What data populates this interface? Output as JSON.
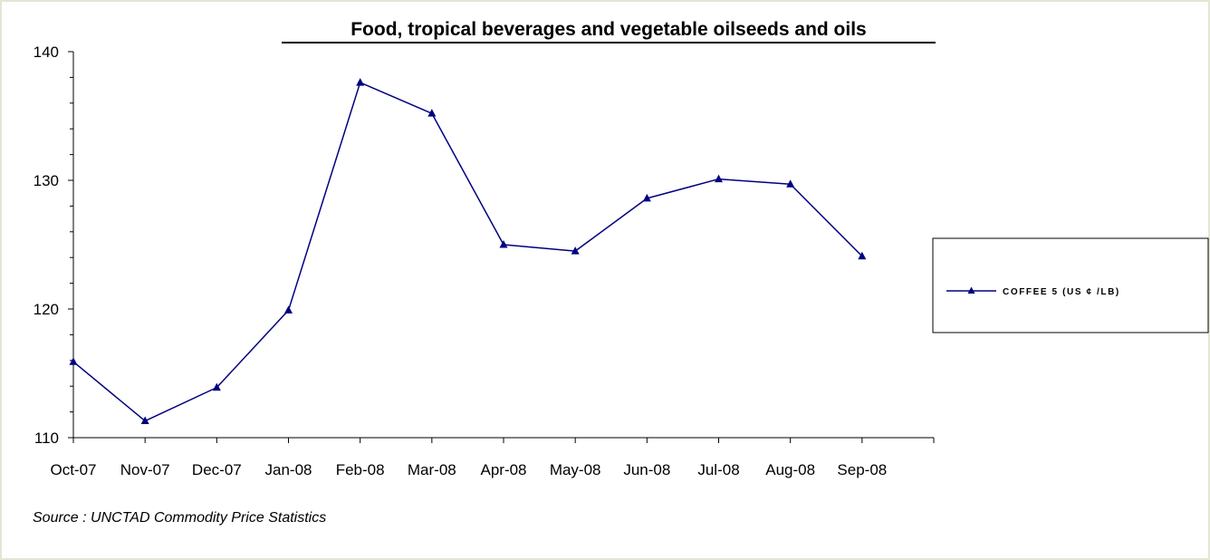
{
  "chart_data": {
    "type": "line",
    "title": "Food, tropical beverages and vegetable oilseeds and oils",
    "xlabel": "",
    "ylabel": "",
    "categories": [
      "Oct-07",
      "Nov-07",
      "Dec-07",
      "Jan-08",
      "Feb-08",
      "Mar-08",
      "Apr-08",
      "May-08",
      "Jun-08",
      "Jul-08",
      "Aug-08",
      "Sep-08"
    ],
    "series": [
      {
        "name": "COFFEE 5 (US ¢ /LB)",
        "values": [
          115.9,
          111.3,
          113.9,
          119.9,
          137.6,
          135.2,
          125.0,
          124.5,
          128.6,
          130.1,
          129.7,
          124.1
        ],
        "color": "#000080",
        "marker": "triangle"
      }
    ],
    "ylim": [
      110,
      140
    ],
    "yticks": [
      110,
      120,
      130,
      140
    ],
    "grid": false,
    "legend_position": "right"
  },
  "source_note": "Source : UNCTAD Commodity Price Statistics"
}
